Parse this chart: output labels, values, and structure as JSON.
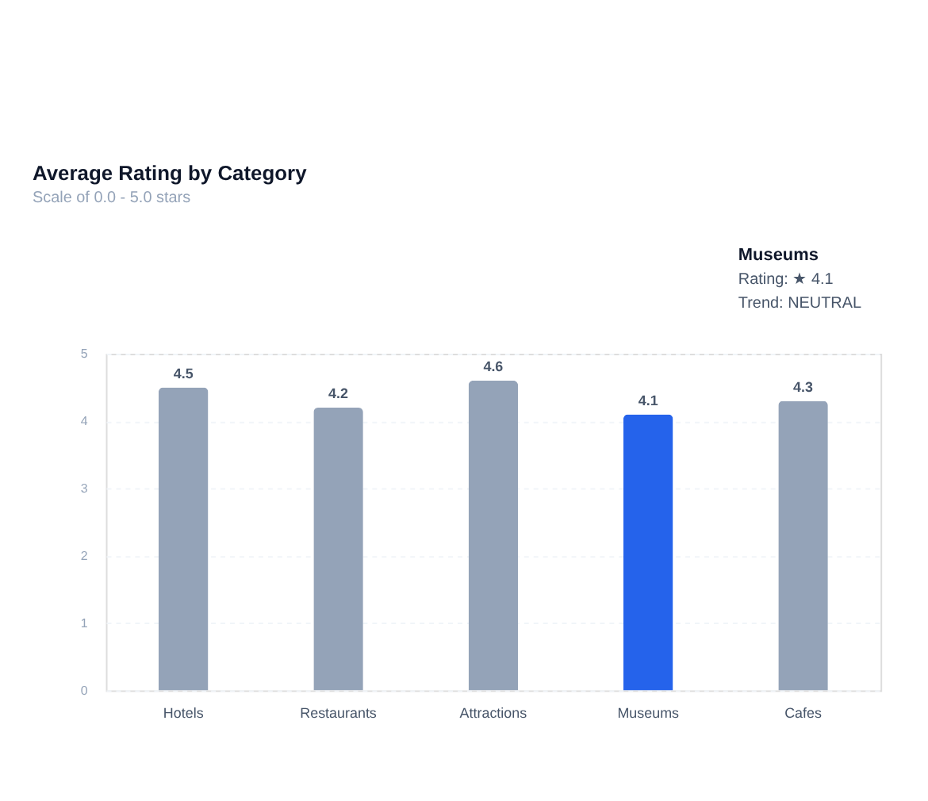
{
  "chart_data": {
    "type": "bar",
    "title": "Average Rating by Category",
    "subtitle": "Scale of 0.0 - 5.0 stars",
    "categories": [
      "Hotels",
      "Restaurants",
      "Attractions",
      "Museums",
      "Cafes"
    ],
    "values": [
      4.5,
      4.2,
      4.6,
      4.1,
      4.3
    ],
    "colors": [
      "#94a3b8",
      "#94a3b8",
      "#94a3b8",
      "#2563eb",
      "#94a3b8"
    ],
    "ylim": [
      0,
      5
    ],
    "yticks": [
      0,
      1,
      2,
      3,
      4,
      5
    ],
    "grid": "y",
    "data_labels": true,
    "annotations": [
      "Museums",
      "Rating: ★ 4.1",
      "Trend: NEUTRAL"
    ]
  }
}
